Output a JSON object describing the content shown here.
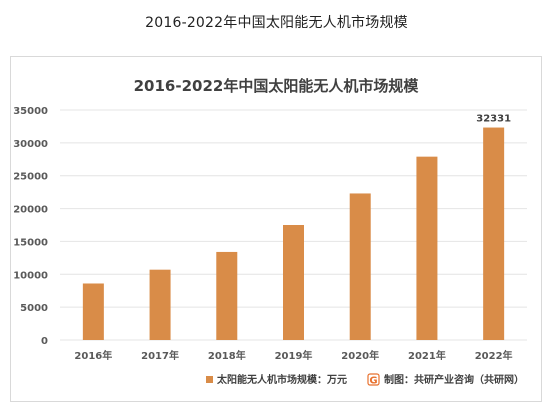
{
  "page": {
    "title": "2016-2022年中国太阳能无人机市场规模"
  },
  "chart_data": {
    "type": "bar",
    "title": "2016-2022年中国太阳能无人机市场规模",
    "categories": [
      "2016年",
      "2017年",
      "2018年",
      "2019年",
      "2020年",
      "2021年",
      "2022年"
    ],
    "series": [
      {
        "name": "太阳能无人机市场规模：万元",
        "values": [
          8600,
          10700,
          13400,
          17500,
          22300,
          27900,
          32331
        ],
        "color": "#d98c48"
      }
    ],
    "data_labels": [
      {
        "category": "2022年",
        "text": "32331"
      }
    ],
    "yticks": [
      "0",
      "5000",
      "10000",
      "15000",
      "20000",
      "25000",
      "30000",
      "35000"
    ],
    "ylim": [
      0,
      35000
    ],
    "grid": true,
    "legend_position": "bottom"
  },
  "credit": {
    "logo_letter": "G",
    "logo_color": "#e8712e",
    "text": "制图：共研产业咨询（共研网）"
  }
}
